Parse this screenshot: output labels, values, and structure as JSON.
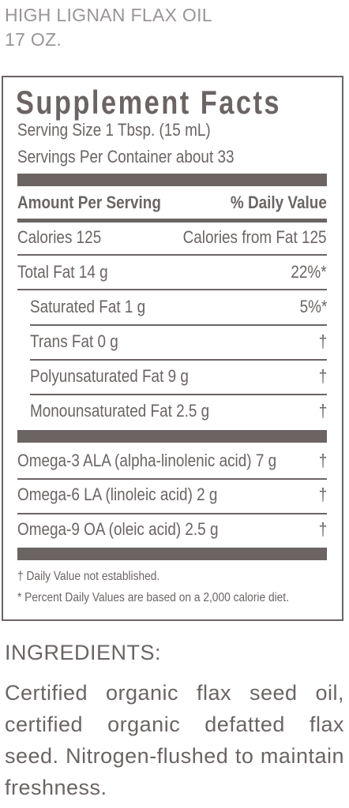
{
  "product": {
    "name": "HIGH LIGNAN FLAX OIL",
    "size": "17 OZ."
  },
  "facts": {
    "title": "Supplement Facts",
    "serving_size": "Serving Size 1 Tbsp. (15 mL)",
    "servings_per_container": "Servings Per Container about 33",
    "header_left": "Amount Per Serving",
    "header_right": "% Daily Value",
    "calories": "Calories  125",
    "calories_from_fat": "Calories from Fat  125",
    "rows": [
      {
        "label": "Total Fat   14 g",
        "dv": "22%*"
      },
      {
        "label": "Saturated Fat   1 g",
        "dv": "5%*"
      },
      {
        "label": "Trans Fat   0 g",
        "dv": "†"
      },
      {
        "label": "Polyunsaturated Fat   9 g",
        "dv": "†"
      },
      {
        "label": "Monounsaturated Fat   2.5 g",
        "dv": "†"
      }
    ],
    "omega_rows": [
      {
        "label": "Omega-3 ALA (alpha-linolenic acid) 7 g",
        "dv": "†"
      },
      {
        "label": "Omega-6 LA (linoleic acid)   2 g",
        "dv": "†"
      },
      {
        "label": "Omega-9 OA (oleic acid)   2.5 g",
        "dv": "†"
      }
    ],
    "footnote_1": "† Daily Value not established.",
    "footnote_2": "* Percent Daily Values are based on a 2,000 calorie diet."
  },
  "ingredients": {
    "heading": "INGREDIENTS:",
    "text": "Certified organic flax seed oil, certified organic defatted flax seed. Nitrogen-flushed to maintain freshness."
  }
}
